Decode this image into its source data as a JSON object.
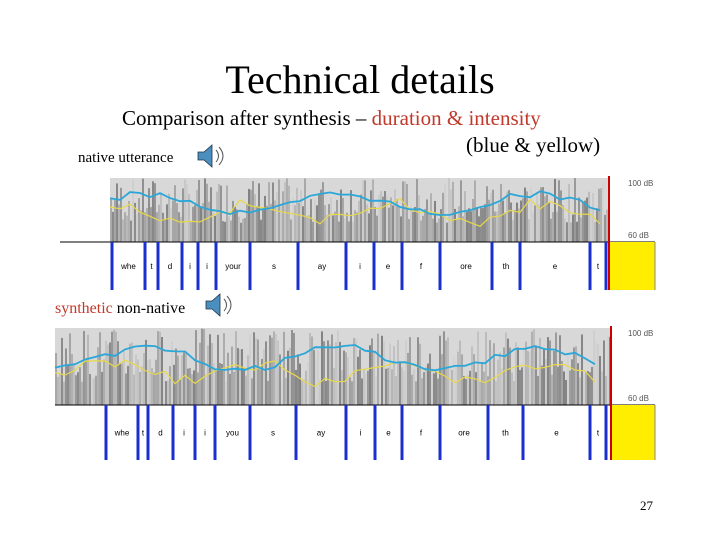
{
  "header": {
    "title": "Technical details",
    "subtitle": {
      "lead": "Comparison after synthesis –",
      "highlight": "duration & intensity",
      "note": "(blue & yellow)"
    }
  },
  "panels": [
    {
      "caption": {
        "plain": "native utterance"
      },
      "db_labels": [
        "100 dB",
        "60 dB"
      ],
      "segments": [
        "whe",
        "t",
        "d",
        "i",
        "i",
        "your",
        "s",
        "ay",
        "i",
        "e",
        "f",
        "ore",
        "th",
        "e",
        "t"
      ]
    },
    {
      "caption": {
        "highlight": "synthetic",
        "plain": "non-native"
      },
      "db_labels": [
        "100 dB",
        "60 dB"
      ],
      "segments": [
        "whe",
        "t",
        "d",
        "i",
        "i",
        "you",
        "s",
        "ay",
        "i",
        "e",
        "f",
        "ore",
        "th",
        "e",
        "t"
      ]
    }
  ],
  "footer": {
    "page_number": "27"
  }
}
